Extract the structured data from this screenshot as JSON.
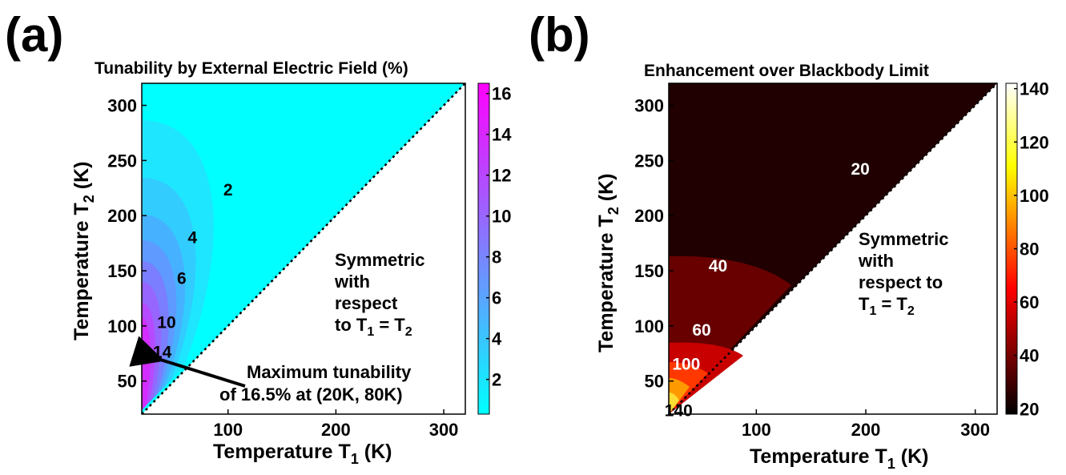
{
  "chart_data": [
    {
      "panel_label": "(a)",
      "type": "heatmap",
      "title": "Tunability by External Electric Field (%)",
      "xlabel": {
        "text": "Temperature T",
        "sub": "1",
        "unit": " (K)"
      },
      "ylabel": {
        "text": "Temperature T",
        "sub": "2",
        "unit": " (K)"
      },
      "xlim": [
        20,
        320
      ],
      "ylim": [
        20,
        320
      ],
      "x_ticks": [
        "100",
        "200",
        "300"
      ],
      "y_ticks": [
        "50",
        "100",
        "150",
        "200",
        "250",
        "300"
      ],
      "colorbar": {
        "min": 0.3,
        "max": 16.5,
        "colors": [
          "#00ffff",
          "#ff00ff"
        ],
        "ticks": [
          "2",
          "4",
          "6",
          "8",
          "10",
          "12",
          "14",
          "16"
        ]
      },
      "contour_labels": [
        {
          "text": "2",
          "x": 100,
          "y": 224
        },
        {
          "text": "4",
          "x": 67,
          "y": 181
        },
        {
          "text": "6",
          "x": 57,
          "y": 144
        },
        {
          "text": "10",
          "x": 43,
          "y": 104
        },
        {
          "text": "14",
          "x": 39,
          "y": 77
        }
      ],
      "annotation_region": {
        "lines": [
          "Symmetric",
          "with",
          "respect",
          "to T"
        ],
        "last_line_parts": [
          "to T",
          "1",
          " = T",
          "2"
        ]
      },
      "maximum_note": {
        "lines": [
          "Maximum tunability",
          "of 16.5% at (20K, 80K)"
        ],
        "point": {
          "x": 20,
          "y": 80
        },
        "value": 16.5
      }
    },
    {
      "panel_label": "(b)",
      "type": "heatmap",
      "title": "Enhancement over Blackbody Limit",
      "xlabel": {
        "text": "Temperature T",
        "sub": "1",
        "unit": " (K)"
      },
      "ylabel": {
        "text": "Temperature T",
        "sub": "2",
        "unit": " (K)"
      },
      "xlim": [
        20,
        320
      ],
      "ylim": [
        20,
        320
      ],
      "x_ticks": [
        "100",
        "200",
        "300"
      ],
      "y_ticks": [
        "50",
        "100",
        "150",
        "200",
        "250",
        "300"
      ],
      "colorbar": {
        "min": 18,
        "max": 142,
        "colors": [
          "#000000",
          "#ff0000",
          "#ffff00",
          "#ffffff"
        ],
        "ticks": [
          "20",
          "40",
          "60",
          "80",
          "100",
          "120",
          "140"
        ]
      },
      "contour_labels": [
        {
          "text": "20",
          "x": 195,
          "y": 243
        },
        {
          "text": "40",
          "x": 65,
          "y": 155
        },
        {
          "text": "60",
          "x": 50,
          "y": 97
        },
        {
          "text": "100",
          "x": 36,
          "y": 66
        },
        {
          "text": "140",
          "x": 29,
          "y": 24
        }
      ],
      "annotation_region": {
        "lines": [
          "Symmetric",
          "with",
          "respect to",
          "T"
        ],
        "last_line_parts": [
          "T",
          "1",
          " = T",
          "2"
        ]
      }
    }
  ]
}
